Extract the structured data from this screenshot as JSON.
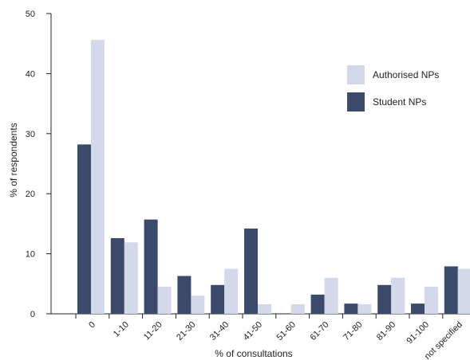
{
  "chart_data": {
    "type": "bar",
    "title": "",
    "xlabel": "% of consultations",
    "ylabel": "% of respondents",
    "ylim": [
      0,
      50
    ],
    "yticks": [
      0,
      10,
      20,
      30,
      40,
      50
    ],
    "grid": false,
    "legend_position": "top-right",
    "categories": [
      "0",
      "1-10",
      "11-20",
      "21-30",
      "31-40",
      "41-50",
      "51-60",
      "61-70",
      "71-80",
      "81-90",
      "91-100",
      "not specified"
    ],
    "series": [
      {
        "name": "Student NPs",
        "color": "#3b4a6b",
        "values": [
          28.2,
          12.6,
          15.7,
          6.3,
          4.8,
          14.2,
          0,
          3.2,
          1.7,
          4.8,
          1.7,
          7.9
        ]
      },
      {
        "name": "Authorised NPs",
        "color": "#d3d8ea",
        "values": [
          45.6,
          11.9,
          4.5,
          3.0,
          7.5,
          1.6,
          1.6,
          6.0,
          1.6,
          6.0,
          4.5,
          7.5
        ]
      }
    ],
    "legend_order": [
      "Authorised NPs",
      "Student NPs"
    ]
  }
}
